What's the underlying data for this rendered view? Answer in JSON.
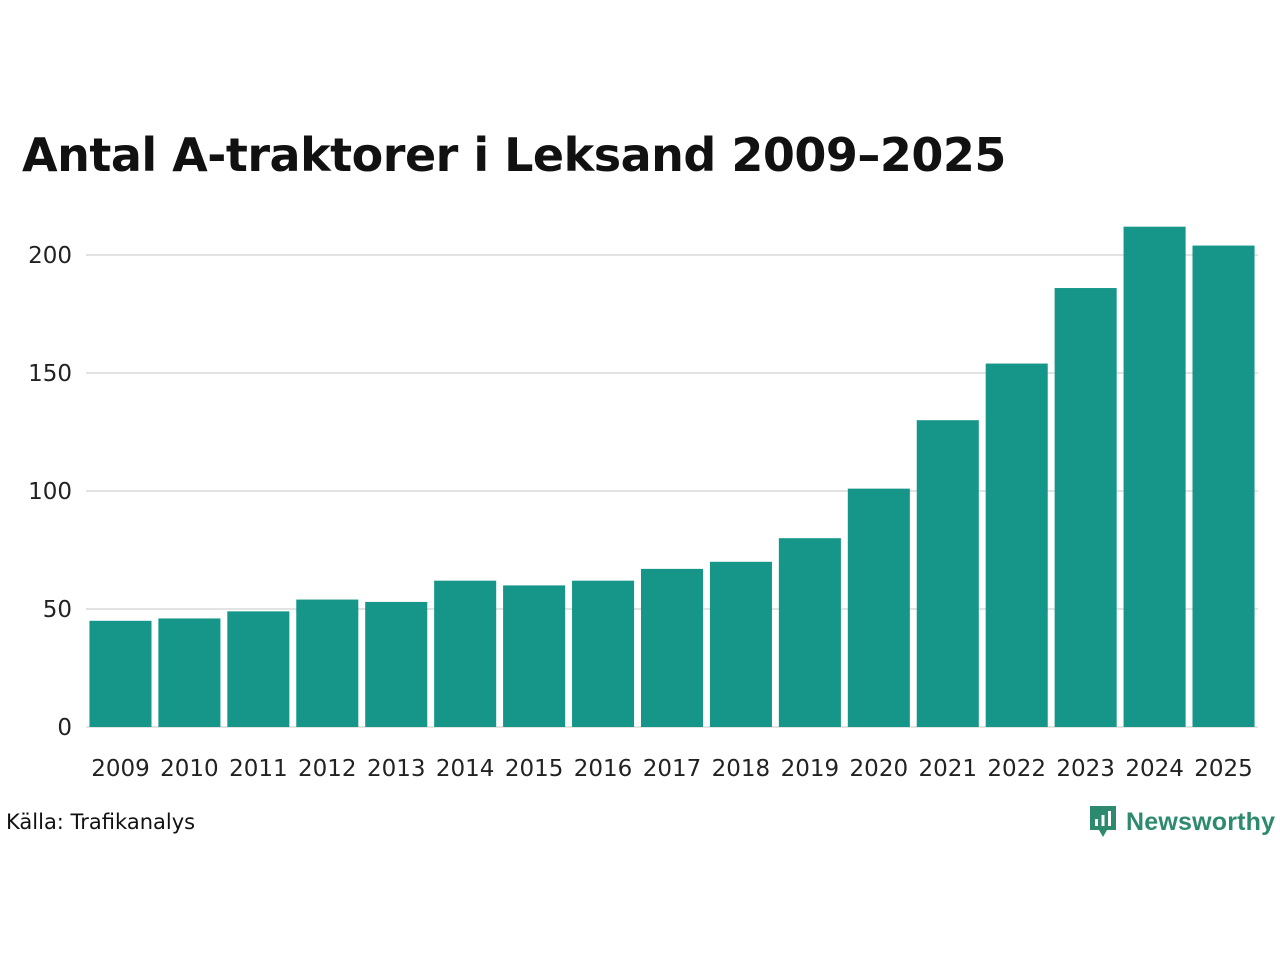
{
  "chart_data": {
    "type": "bar",
    "title": "Antal A-traktorer i Leksand 2009–2025",
    "categories": [
      "2009",
      "2010",
      "2011",
      "2012",
      "2013",
      "2014",
      "2015",
      "2016",
      "2017",
      "2018",
      "2019",
      "2020",
      "2021",
      "2022",
      "2023",
      "2024",
      "2025"
    ],
    "values": [
      45,
      46,
      49,
      54,
      53,
      62,
      60,
      62,
      67,
      70,
      80,
      101,
      130,
      154,
      186,
      212,
      204
    ],
    "yticks": [
      0,
      50,
      100,
      150,
      200
    ],
    "ylim": [
      0,
      220
    ],
    "xlabel": "",
    "ylabel": "",
    "grid": true,
    "bar_color": "#159688",
    "grid_color": "#e3e3e3"
  },
  "footer": {
    "source": "Källa: Trafikanalys",
    "brand": "Newsworthy",
    "brand_icon": "newsworthy-logo-icon",
    "brand_color": "#2e8a6e"
  }
}
